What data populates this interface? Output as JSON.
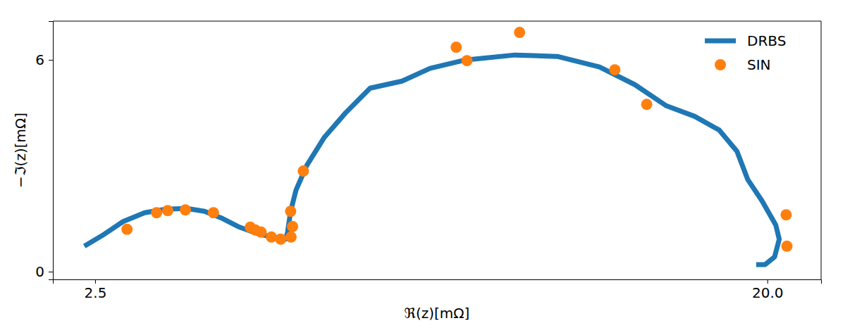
{
  "chart_data": {
    "type": "line",
    "x_label": "ℜ(z)[mΩ]",
    "y_label": "−ℑ(z)[mΩ]",
    "xlim": [
      1.4,
      21.4
    ],
    "ylim": [
      -0.22,
      7.1
    ],
    "xticks": [
      2.5,
      {
        "value": 20,
        "label": "20.0"
      }
    ],
    "yticks": [
      0,
      6
    ],
    "legend": "upper right",
    "grid": false,
    "series": [
      {
        "name": "DRBS",
        "type": "line",
        "color": "#1f77b4",
        "line_style": "solid",
        "x": [
          2.22,
          2.68,
          3.23,
          3.79,
          4.34,
          4.89,
          5.35,
          5.81,
          6.26,
          6.72,
          7.18,
          7.46,
          7.51,
          7.59,
          7.73,
          8.01,
          8.47,
          9.02,
          9.66,
          10.49,
          11.22,
          12.14,
          13.43,
          14.53,
          15.63,
          16.55,
          17.37,
          18.11,
          18.75,
          19.21,
          19.49,
          19.86,
          20.22,
          20.31,
          20.19,
          19.94,
          19.71
        ],
        "values": [
          0.72,
          1.02,
          1.42,
          1.67,
          1.77,
          1.79,
          1.71,
          1.51,
          1.26,
          1.08,
          0.96,
          0.92,
          1.12,
          1.71,
          2.31,
          3.01,
          3.81,
          4.5,
          5.2,
          5.4,
          5.76,
          6.0,
          6.14,
          6.1,
          5.8,
          5.3,
          4.7,
          4.4,
          4.01,
          3.41,
          2.61,
          2.01,
          1.32,
          0.92,
          0.42,
          0.2,
          0.2
        ]
      },
      {
        "name": "SIN",
        "type": "scatter",
        "color": "#ff7f0e",
        "marker": "circle",
        "x": [
          3.33,
          4.1,
          4.39,
          4.85,
          5.58,
          6.54,
          6.67,
          6.82,
          7.09,
          7.33,
          7.6,
          7.64,
          7.59,
          7.92,
          11.9,
          12.18,
          13.55,
          16.03,
          16.86,
          20.49,
          20.51
        ],
        "values": [
          1.2,
          1.67,
          1.73,
          1.75,
          1.67,
          1.26,
          1.18,
          1.12,
          0.98,
          0.92,
          0.98,
          1.28,
          1.71,
          2.85,
          6.36,
          5.98,
          6.78,
          5.72,
          4.74,
          1.61,
          0.72
        ]
      }
    ]
  }
}
